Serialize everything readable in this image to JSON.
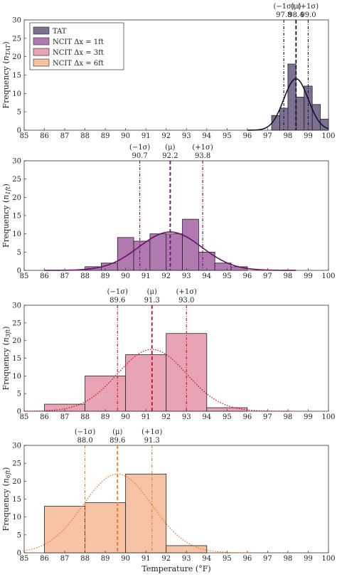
{
  "chart_data": [
    {
      "type": "bar",
      "panel": "TAT",
      "ylabel": "Frequency (n_TAT)",
      "ylabel_main": "Frequency (",
      "ylabel_sub": "TAT",
      "xlim": [
        85,
        100
      ],
      "ylim": [
        0,
        30
      ],
      "xticks": [
        "85",
        "86",
        "87",
        "88",
        "89",
        "90",
        "91",
        "92",
        "93",
        "94",
        "95",
        "96",
        "97",
        "98",
        "99",
        "100"
      ],
      "yticks": [
        "0",
        "5",
        "10",
        "15",
        "20",
        "25",
        "30"
      ],
      "color": "#7d7090",
      "line_color": "#1a1030",
      "curve_style": "solid",
      "bin_width": 0.4,
      "bins": [
        {
          "start": 97.2,
          "value": 4
        },
        {
          "start": 97.6,
          "value": 6
        },
        {
          "start": 98.0,
          "value": 18
        },
        {
          "start": 98.4,
          "value": 9
        },
        {
          "start": 98.8,
          "value": 12
        },
        {
          "start": 99.2,
          "value": 7
        },
        {
          "start": 99.6,
          "value": 3
        }
      ],
      "mean": 98.4,
      "sigma": 0.6,
      "curve_peak": 14,
      "stats": [
        {
          "label": "(−1σ)",
          "value": "97.8",
          "x": 97.8
        },
        {
          "label": "(μ)",
          "value": "98.4",
          "x": 98.4
        },
        {
          "label": "(+1σ)",
          "value": "99.0",
          "x": 99.0
        }
      ]
    },
    {
      "type": "bar",
      "panel": "NCIT 1ft",
      "ylabel": "Frequency (n_1ft)",
      "ylabel_main": "Frequency (",
      "ylabel_sub": "1ft",
      "xlim": [
        85,
        100
      ],
      "ylim": [
        0,
        30
      ],
      "xticks": [
        "85",
        "86",
        "87",
        "88",
        "89",
        "90",
        "91",
        "92",
        "93",
        "94",
        "95",
        "96",
        "97",
        "98",
        "99",
        "100"
      ],
      "yticks": [
        "0",
        "5",
        "10",
        "15",
        "20",
        "25",
        "30"
      ],
      "color": "#b07ab0",
      "line_color": "#6a0f6a",
      "curve_style": "solid",
      "bin_width": 0.8,
      "bins": [
        {
          "start": 88.0,
          "value": 1
        },
        {
          "start": 88.8,
          "value": 2
        },
        {
          "start": 89.6,
          "value": 9
        },
        {
          "start": 90.4,
          "value": 8
        },
        {
          "start": 91.2,
          "value": 10
        },
        {
          "start": 92.0,
          "value": 10
        },
        {
          "start": 92.8,
          "value": 14
        },
        {
          "start": 93.6,
          "value": 5
        },
        {
          "start": 94.4,
          "value": 2
        },
        {
          "start": 95.2,
          "value": 1
        }
      ],
      "mean": 92.2,
      "sigma": 1.55,
      "curve_peak": 10.5,
      "stats": [
        {
          "label": "(−1σ)",
          "value": "90.7",
          "x": 90.7
        },
        {
          "label": "(μ)",
          "value": "92.2",
          "x": 92.2
        },
        {
          "label": "(+1σ)",
          "value": "93.8",
          "x": 93.8
        }
      ]
    },
    {
      "type": "bar",
      "panel": "NCIT 3ft",
      "ylabel": "Frequency (n_3ft)",
      "ylabel_main": "Frequency (",
      "ylabel_sub": "3ft",
      "xlim": [
        85,
        100
      ],
      "ylim": [
        0,
        30
      ],
      "xticks": [
        "85",
        "86",
        "87",
        "88",
        "89",
        "90",
        "91",
        "92",
        "93",
        "94",
        "95",
        "96",
        "97",
        "98",
        "99",
        "100"
      ],
      "yticks": [
        "0",
        "5",
        "10",
        "15",
        "20",
        "25",
        "30"
      ],
      "color": "#e8a4b4",
      "line_color": "#c8102e",
      "curve_style": "dotted",
      "bin_width": 2,
      "bins": [
        {
          "start": 86,
          "value": 2
        },
        {
          "start": 88,
          "value": 10
        },
        {
          "start": 90,
          "value": 16
        },
        {
          "start": 92,
          "value": 22
        },
        {
          "start": 94,
          "value": 1
        }
      ],
      "mean": 91.3,
      "sigma": 1.7,
      "curve_peak": 17.5,
      "stats": [
        {
          "label": "(−1σ)",
          "value": "89.6",
          "x": 89.6
        },
        {
          "label": "(μ)",
          "value": "91.3",
          "x": 91.3
        },
        {
          "label": "(+1σ)",
          "value": "93.0",
          "x": 93.0
        }
      ]
    },
    {
      "type": "bar",
      "panel": "NCIT 6ft",
      "ylabel": "Frequency (n_6ft)",
      "ylabel_main": "Frequency (",
      "ylabel_sub": "6ft",
      "xlabel": "Temperature (°F)",
      "xlim": [
        85,
        100
      ],
      "ylim": [
        0,
        30
      ],
      "xticks": [
        "85",
        "86",
        "87",
        "88",
        "89",
        "90",
        "91",
        "92",
        "93",
        "94",
        "95",
        "96",
        "97",
        "98",
        "99",
        "100"
      ],
      "yticks": [
        "0",
        "5",
        "10",
        "15",
        "20",
        "25",
        "30"
      ],
      "color": "#f7c3a6",
      "line_color": "#e87a2a",
      "curve_style": "dotted",
      "bin_width": 2,
      "bins": [
        {
          "start": 86,
          "value": 13
        },
        {
          "start": 88,
          "value": 14
        },
        {
          "start": 90,
          "value": 22
        },
        {
          "start": 92,
          "value": 2
        }
      ],
      "mean": 89.6,
      "sigma": 1.7,
      "curve_peak": 22,
      "stats": [
        {
          "label": "(−1σ)",
          "value": "88.0",
          "x": 88.0
        },
        {
          "label": "(μ)",
          "value": "89.6",
          "x": 89.6
        },
        {
          "label": "(+1σ)",
          "value": "91.3",
          "x": 91.3
        }
      ]
    }
  ],
  "legend": {
    "placement": "top-left",
    "entries": [
      {
        "label": "TAT",
        "color": "#7d7090"
      },
      {
        "label": "NCIT Δx = 1ft",
        "color": "#b07ab0"
      },
      {
        "label": "NCIT Δx = 3ft",
        "color": "#e8a4b4"
      },
      {
        "label": "NCIT Δx = 6ft",
        "color": "#f7c3a6"
      }
    ]
  }
}
